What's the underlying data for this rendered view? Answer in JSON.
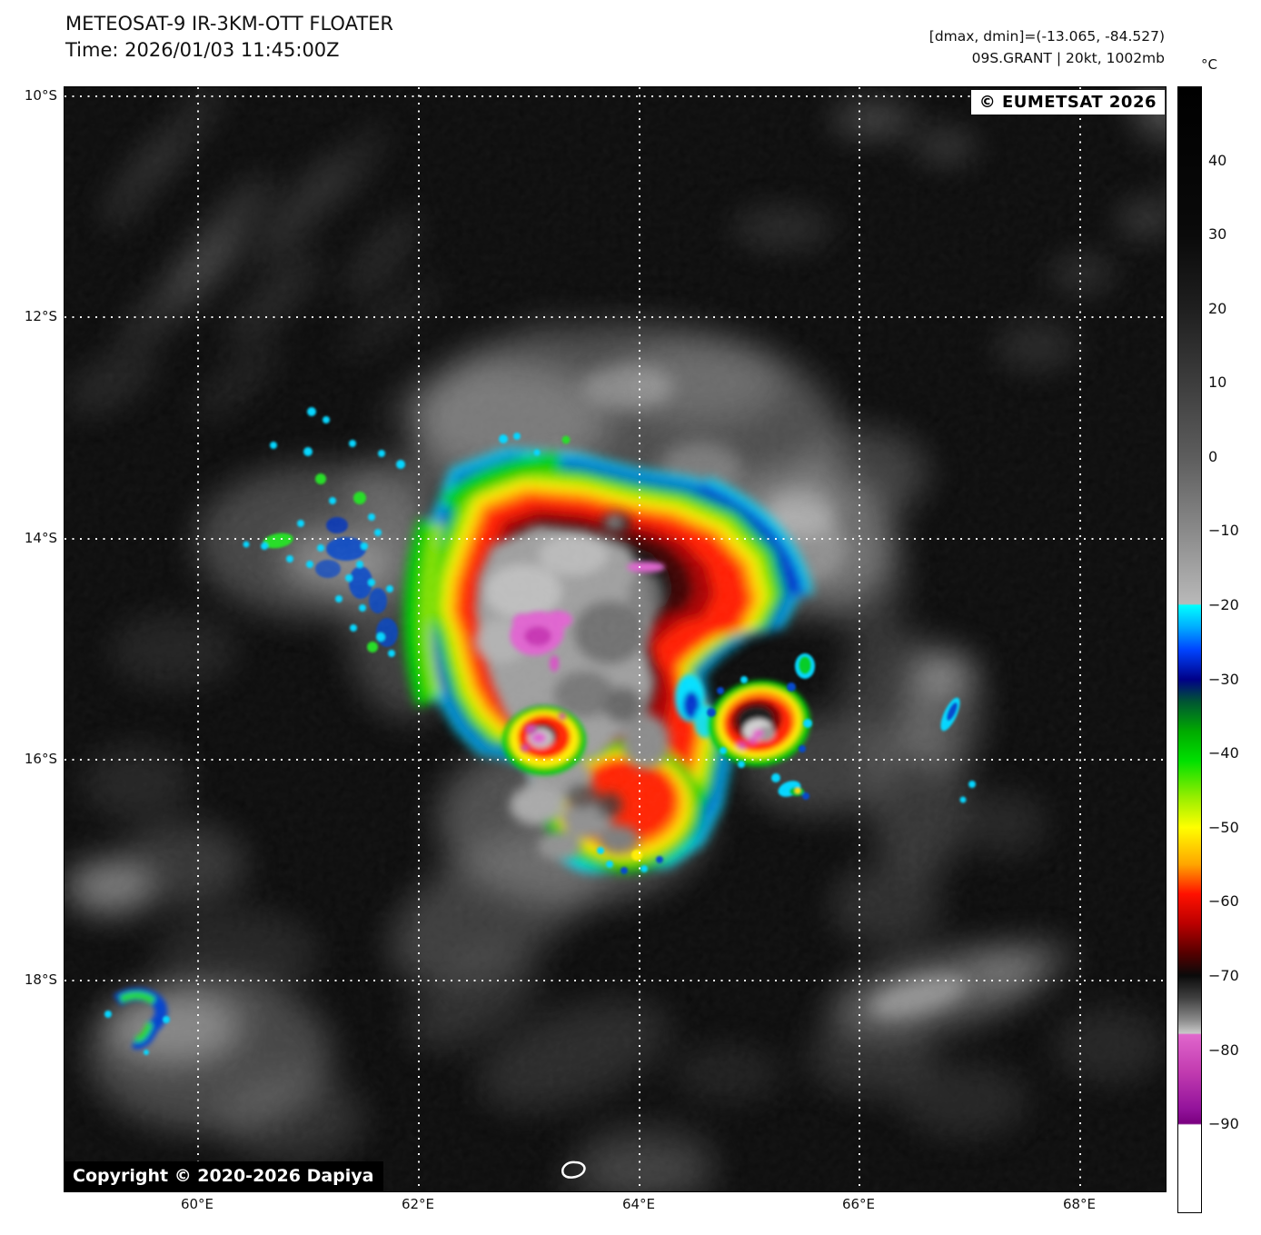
{
  "header": {
    "title": "METEOSAT-9 IR-3KM-OTT FLOATER",
    "time": "Time: 2026/01/03 11:45:00Z",
    "range_info": "[dmax, dmin]=(-13.065, -84.527)",
    "storm_info": "09S.GRANT | 20kt, 1002mb"
  },
  "map": {
    "credit_badge": "© EUMETSAT 2026",
    "copyright_badge": "Copyright © 2020-2026 Dapiya",
    "lat_tick_labels": [
      "10°S",
      "12°S",
      "14°S",
      "16°S",
      "18°S"
    ],
    "lon_tick_labels": [
      "60°E",
      "62°E",
      "64°E",
      "66°E",
      "68°E"
    ]
  },
  "colorbar": {
    "unit": "°C",
    "tick_labels": [
      "40",
      "30",
      "20",
      "10",
      "0",
      "−10",
      "−20",
      "−30",
      "−40",
      "−50",
      "−60",
      "−70",
      "−80",
      "−90"
    ],
    "tick_values": [
      40,
      30,
      20,
      10,
      0,
      -10,
      -20,
      -30,
      -40,
      -50,
      -60,
      -70,
      -80,
      -90
    ],
    "scale_top_value": 50,
    "scale_bottom_value": -102,
    "gradient_stops": [
      [
        50,
        "#000000"
      ],
      [
        30,
        "#0a0a0a"
      ],
      [
        20,
        "#1f1f1f"
      ],
      [
        10,
        "#3d3d3d"
      ],
      [
        0,
        "#5d5d5d"
      ],
      [
        -10,
        "#8a8a8a"
      ],
      [
        -19.8,
        "#b9b9b9"
      ],
      [
        -20,
        "#00ffff"
      ],
      [
        -23,
        "#00aaff"
      ],
      [
        -26,
        "#0044ff"
      ],
      [
        -30,
        "#000088"
      ],
      [
        -33,
        "#005533"
      ],
      [
        -37,
        "#00aa00"
      ],
      [
        -41,
        "#00e000"
      ],
      [
        -46,
        "#99ee00"
      ],
      [
        -50,
        "#ffff00"
      ],
      [
        -55,
        "#ffa500"
      ],
      [
        -59,
        "#ff1100"
      ],
      [
        -63,
        "#bb0000"
      ],
      [
        -67,
        "#550000"
      ],
      [
        -70,
        "#0a0a0a"
      ],
      [
        -73,
        "#3f3f3f"
      ],
      [
        -76,
        "#8a8a8a"
      ],
      [
        -77.8,
        "#c8c8c8"
      ],
      [
        -78,
        "#e066cc"
      ],
      [
        -83,
        "#c23bb0"
      ],
      [
        -88,
        "#93139b"
      ],
      [
        -90,
        "#7a0080"
      ],
      [
        -90.2,
        "#ffffff"
      ],
      [
        -102,
        "#ffffff"
      ]
    ]
  }
}
